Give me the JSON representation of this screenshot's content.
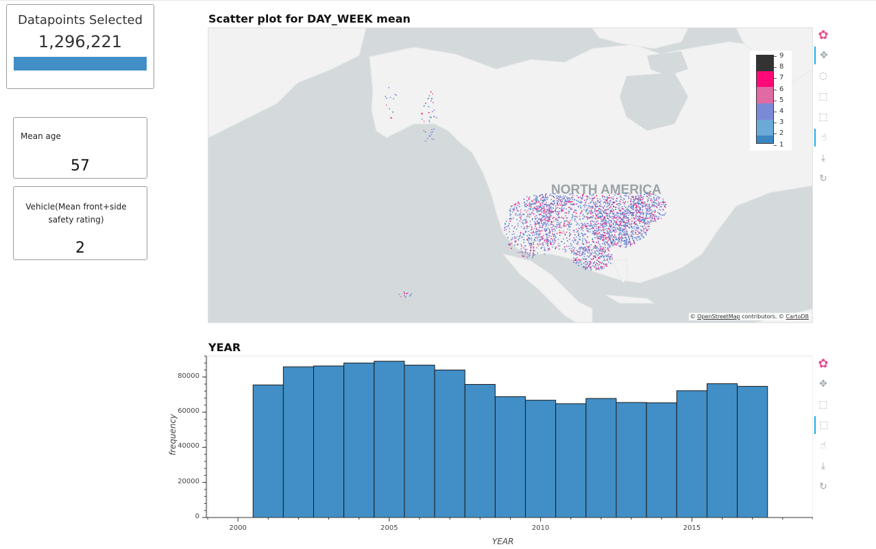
{
  "kpi": {
    "title": "Datapoints Selected",
    "value": "1,296,221",
    "bar_fill": 1.0,
    "bar_color": "#418fc6"
  },
  "mean_age": {
    "label": "Mean age",
    "value": "57"
  },
  "safety": {
    "label": "Vehicle(Mean front+side safety rating)",
    "value": "2"
  },
  "map": {
    "title": "Scatter plot for DAY_WEEK mean",
    "region_label": "NORTH AMERICA",
    "attribution": {
      "prefix": "© ",
      "osm": "OpenStreetMap",
      "middle": " contributors, © ",
      "carto": "CartoDB"
    },
    "colorbar": {
      "labels": [
        "9",
        "8",
        "7",
        "6",
        "5",
        "4",
        "3",
        "2",
        "1"
      ],
      "colors": [
        "#333333",
        "#333333",
        "#ff0a78",
        "#ff0a78",
        "#e06ba3",
        "#e06ba3",
        "#7b8ad6",
        "#7b8ad6",
        "#6ba9d6",
        "#6ba9d6",
        "#3a87c4"
      ]
    },
    "tools": [
      "logo-icon",
      "pan-icon",
      "lasso-icon",
      "box-zoom-icon",
      "box-select-icon",
      "hover-icon",
      "save-icon",
      "reset-icon"
    ]
  },
  "histogram": {
    "title": "YEAR",
    "tools": [
      "logo-icon",
      "pan-icon",
      "box-zoom-icon",
      "box-select-icon",
      "hover-icon",
      "save-icon",
      "reset-icon"
    ],
    "chart_data": {
      "type": "bar",
      "title": "YEAR",
      "xlabel": "YEAR",
      "ylabel": "frequency",
      "x": [
        2001,
        2002,
        2003,
        2004,
        2005,
        2006,
        2007,
        2008,
        2009,
        2010,
        2011,
        2012,
        2013,
        2014,
        2015,
        2016,
        2017
      ],
      "values": [
        75500,
        85800,
        86300,
        88000,
        89000,
        86800,
        84000,
        75800,
        68800,
        66800,
        64800,
        67800,
        65500,
        65300,
        72200,
        76200,
        74700
      ],
      "xlim": [
        1999,
        2019
      ],
      "ylim": [
        0,
        92000
      ],
      "yticks": [
        "0",
        "20000",
        "40000",
        "60000",
        "80000"
      ],
      "xticks": [
        "2000",
        "2005",
        "2010",
        "2015"
      ],
      "bar_color": "#418fc6"
    }
  }
}
